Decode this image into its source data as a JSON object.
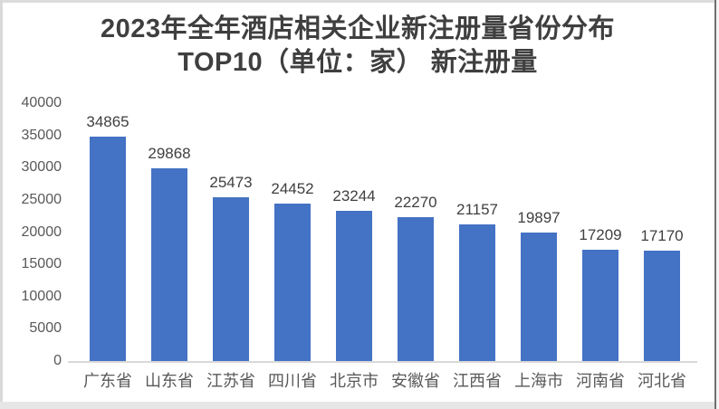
{
  "title": {
    "line1": "2023年全年酒店相关企业新注册量省份分布",
    "line2": "TOP10（单位：家） 新注册量"
  },
  "chart_data": {
    "type": "bar",
    "title": "2023年全年酒店相关企业新注册量省份分布 TOP10（单位：家） 新注册量",
    "categories": [
      "广东省",
      "山东省",
      "江苏省",
      "四川省",
      "北京市",
      "安徽省",
      "江西省",
      "上海市",
      "河南省",
      "河北省"
    ],
    "values": [
      34865,
      29868,
      25473,
      24452,
      23244,
      22270,
      21157,
      19897,
      17209,
      17170
    ],
    "data_labels_shown": true,
    "xlabel": "",
    "ylabel": "",
    "ylim": [
      0,
      40000
    ],
    "yticks": [
      40000,
      35000,
      30000,
      25000,
      20000,
      15000,
      10000,
      5000,
      0
    ],
    "grid": false,
    "legend": "none",
    "bar_color": "#4472C4",
    "axis_line_color": "#d9d9d9",
    "label_color": "#404040",
    "tick_color": "#595959",
    "title_color": "#3f3f3f"
  }
}
